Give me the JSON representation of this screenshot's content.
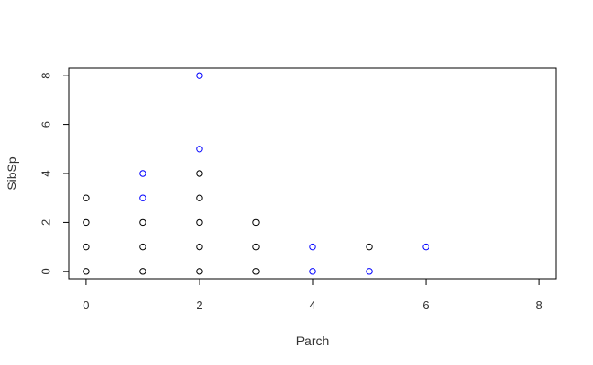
{
  "chart_data": {
    "type": "scatter",
    "title": "",
    "xlabel": "Parch",
    "ylabel": "SibSp",
    "xlim": [
      -0.3,
      8.3
    ],
    "ylim": [
      -0.3,
      8.3
    ],
    "xticks": [
      0,
      2,
      4,
      6,
      8
    ],
    "yticks": [
      0,
      2,
      4,
      6,
      8
    ],
    "grid": false,
    "colors": {
      "black_points": "#000000",
      "blue_points": "#0000ff"
    },
    "points": [
      {
        "x": 0,
        "y": 0,
        "color": "#000000"
      },
      {
        "x": 0,
        "y": 1,
        "color": "#000000"
      },
      {
        "x": 0,
        "y": 2,
        "color": "#000000"
      },
      {
        "x": 0,
        "y": 3,
        "color": "#000000"
      },
      {
        "x": 1,
        "y": 0,
        "color": "#000000"
      },
      {
        "x": 1,
        "y": 1,
        "color": "#000000"
      },
      {
        "x": 1,
        "y": 2,
        "color": "#000000"
      },
      {
        "x": 1,
        "y": 3,
        "color": "#0000ff"
      },
      {
        "x": 1,
        "y": 4,
        "color": "#0000ff"
      },
      {
        "x": 2,
        "y": 0,
        "color": "#000000"
      },
      {
        "x": 2,
        "y": 1,
        "color": "#000000"
      },
      {
        "x": 2,
        "y": 2,
        "color": "#000000"
      },
      {
        "x": 2,
        "y": 3,
        "color": "#000000"
      },
      {
        "x": 2,
        "y": 4,
        "color": "#000000"
      },
      {
        "x": 2,
        "y": 5,
        "color": "#0000ff"
      },
      {
        "x": 2,
        "y": 8,
        "color": "#0000ff"
      },
      {
        "x": 3,
        "y": 0,
        "color": "#000000"
      },
      {
        "x": 3,
        "y": 1,
        "color": "#000000"
      },
      {
        "x": 3,
        "y": 2,
        "color": "#000000"
      },
      {
        "x": 4,
        "y": 0,
        "color": "#0000ff"
      },
      {
        "x": 4,
        "y": 1,
        "color": "#0000ff"
      },
      {
        "x": 5,
        "y": 0,
        "color": "#0000ff"
      },
      {
        "x": 5,
        "y": 1,
        "color": "#000000"
      },
      {
        "x": 6,
        "y": 1,
        "color": "#0000ff"
      }
    ]
  }
}
